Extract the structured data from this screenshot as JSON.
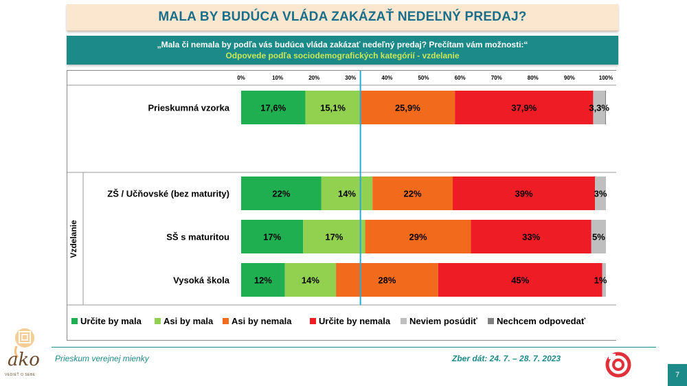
{
  "title": "MALA BY BUDÚCA VLÁDA ZAKÁZAŤ NEDEĽNÝ PREDAJ?",
  "question": "„Mala či nemala by podľa vás budúca vláda zakázať nedeľný predaj? Prečítam vám možnosti:“",
  "subtitle": "Odpovede podľa sociodemografických kategórií - vzdelanie",
  "chart_data": {
    "type": "bar",
    "orientation": "horizontal",
    "stacked": true,
    "percent": true,
    "xlim": [
      0,
      100
    ],
    "x_ticks": [
      "0%",
      "10%",
      "20%",
      "30%",
      "40%",
      "50%",
      "60%",
      "70%",
      "80%",
      "90%",
      "100%"
    ],
    "group_label": "Vzdelanie",
    "categories": [
      "Prieskumná vzorka",
      "ZŠ / Učňovské (bez maturity)",
      "SŠ s maturitou",
      "Vysoká škola"
    ],
    "series": [
      {
        "name": "Určite by mala",
        "color": "#1fae50",
        "values": [
          17.6,
          22,
          17,
          12
        ],
        "labels": [
          "17,6%",
          "22%",
          "17%",
          "12%"
        ]
      },
      {
        "name": "Asi by mala",
        "color": "#92d050",
        "values": [
          15.1,
          14,
          17,
          14
        ],
        "labels": [
          "15,1%",
          "14%",
          "17%",
          "14%"
        ]
      },
      {
        "name": "Asi by nemala",
        "color": "#f26b1d",
        "values": [
          25.9,
          22,
          29,
          28
        ],
        "labels": [
          "25,9%",
          "22%",
          "29%",
          "28%"
        ]
      },
      {
        "name": "Určite by nemala",
        "color": "#ee1c25",
        "values": [
          37.9,
          39,
          33,
          45
        ],
        "labels": [
          "37,9%",
          "39%",
          "33%",
          "45%"
        ]
      },
      {
        "name": "Neviem posúdiť",
        "color": "#bfbfbf",
        "values": [
          3.3,
          3,
          5,
          1
        ],
        "labels": [
          "3,3%",
          "3%",
          "5%",
          "1%"
        ]
      },
      {
        "name": "Nechcem odpovedať",
        "color": "#808080",
        "values": [
          0.3,
          0.3,
          0.3,
          0.3
        ],
        "labels": [
          "",
          "",
          "",
          ""
        ]
      }
    ],
    "reference_line_x": 32.7,
    "reference_line_color": "#29a8dc",
    "legend_position": "bottom",
    "grid": false
  },
  "footer": {
    "left": "Prieskum verejnej mienky",
    "right": "Zber dát: 24. 7. – 28. 7. 2023",
    "page_number": "7"
  },
  "logo": {
    "text": "ako",
    "tagline": "VEDIEŤ O SEBE",
    "icon": "ako-logo-icon"
  }
}
